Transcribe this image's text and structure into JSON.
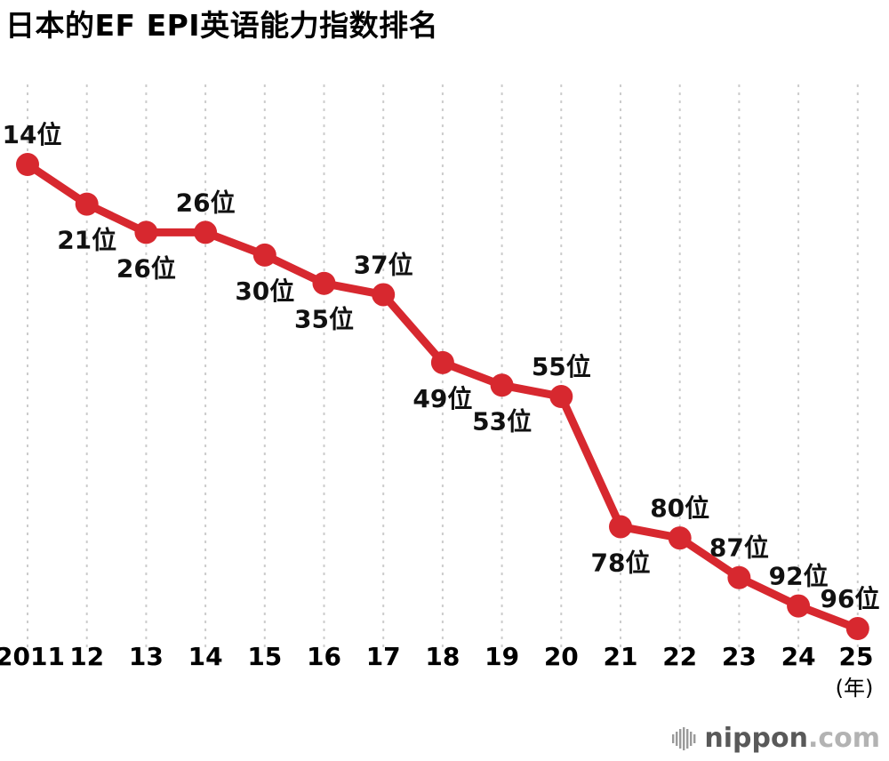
{
  "title": "日本的EF EPI英语能力指数排名",
  "footer": {
    "brand": "nippon",
    "brand_suffix": ".com"
  },
  "chart_data": {
    "type": "line",
    "title": "日本的EF EPI英语能力指数排名",
    "categories": [
      "2011",
      "12",
      "13",
      "14",
      "15",
      "16",
      "17",
      "18",
      "19",
      "20",
      "21",
      "22",
      "23",
      "24",
      "25"
    ],
    "values": [
      14,
      21,
      26,
      26,
      30,
      35,
      37,
      49,
      53,
      55,
      78,
      80,
      87,
      92,
      96
    ],
    "point_labels": [
      "14位",
      "21位",
      "26位",
      "26位",
      "30位",
      "35位",
      "37位",
      "49位",
      "53位",
      "55位",
      "78位",
      "80位",
      "87位",
      "92位",
      "96位"
    ],
    "label_positions": [
      "above",
      "below",
      "below",
      "above",
      "below",
      "below",
      "above",
      "below",
      "below",
      "above",
      "below",
      "above",
      "above",
      "above",
      "above"
    ],
    "x_unit_label": "(年)",
    "xlabel": "",
    "ylabel": "",
    "ylim": [
      14,
      96
    ],
    "y_inverted": true,
    "grid": "vertical-dashed",
    "legend": "none",
    "line_color": "#d7282f",
    "grid_color": "#cccccc",
    "label_color": "#111111"
  }
}
